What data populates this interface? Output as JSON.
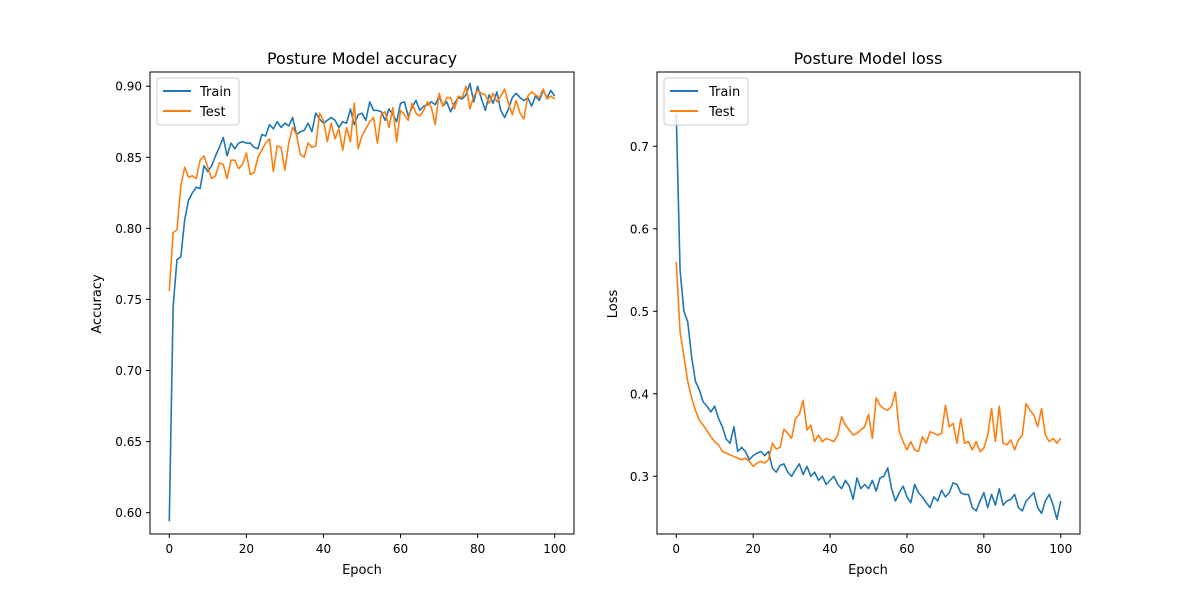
{
  "colors": {
    "train": "#1f77b4",
    "test": "#ff7f0e"
  },
  "chart_data": [
    {
      "type": "line",
      "title": "Posture Model accuracy",
      "xlabel": "Epoch",
      "ylabel": "Accuracy",
      "xlim": [
        -5,
        105
      ],
      "ylim": [
        0.585,
        0.91
      ],
      "xticks": [
        0,
        20,
        40,
        60,
        80,
        100
      ],
      "yticks": [
        0.6,
        0.65,
        0.7,
        0.75,
        0.8,
        0.85,
        0.9
      ],
      "ytick_labels": [
        "0.60",
        "0.65",
        "0.70",
        "0.75",
        "0.80",
        "0.85",
        "0.90"
      ],
      "legend": "upper-left",
      "series": [
        {
          "name": "Train",
          "color": "#1f77b4",
          "values": [
            0.594,
            0.745,
            0.778,
            0.78,
            0.806,
            0.82,
            0.825,
            0.829,
            0.828,
            0.844,
            0.84,
            0.844,
            0.851,
            0.857,
            0.864,
            0.851,
            0.86,
            0.856,
            0.86,
            0.861,
            0.86,
            0.86,
            0.857,
            0.856,
            0.866,
            0.865,
            0.873,
            0.87,
            0.875,
            0.871,
            0.874,
            0.872,
            0.878,
            0.866,
            0.868,
            0.869,
            0.874,
            0.868,
            0.881,
            0.877,
            0.874,
            0.876,
            0.878,
            0.876,
            0.871,
            0.875,
            0.874,
            0.884,
            0.873,
            0.88,
            0.881,
            0.876,
            0.889,
            0.883,
            0.883,
            0.882,
            0.876,
            0.884,
            0.88,
            0.875,
            0.888,
            0.889,
            0.879,
            0.885,
            0.89,
            0.883,
            0.886,
            0.887,
            0.889,
            0.887,
            0.893,
            0.886,
            0.889,
            0.882,
            0.888,
            0.892,
            0.891,
            0.894,
            0.902,
            0.889,
            0.9,
            0.891,
            0.883,
            0.894,
            0.888,
            0.896,
            0.883,
            0.878,
            0.884,
            0.892,
            0.895,
            0.892,
            0.89,
            0.892,
            0.886,
            0.893,
            0.89,
            0.897,
            0.892,
            0.897,
            0.893
          ]
        },
        {
          "name": "Test",
          "color": "#ff7f0e",
          "values": [
            0.756,
            0.797,
            0.799,
            0.83,
            0.843,
            0.836,
            0.837,
            0.835,
            0.848,
            0.851,
            0.843,
            0.835,
            0.837,
            0.846,
            0.845,
            0.835,
            0.848,
            0.848,
            0.842,
            0.845,
            0.853,
            0.838,
            0.839,
            0.85,
            0.855,
            0.86,
            0.863,
            0.84,
            0.858,
            0.857,
            0.841,
            0.86,
            0.871,
            0.866,
            0.852,
            0.85,
            0.86,
            0.857,
            0.858,
            0.881,
            0.876,
            0.861,
            0.874,
            0.863,
            0.87,
            0.855,
            0.871,
            0.861,
            0.888,
            0.856,
            0.865,
            0.87,
            0.875,
            0.878,
            0.86,
            0.88,
            0.882,
            0.871,
            0.885,
            0.861,
            0.883,
            0.88,
            0.876,
            0.888,
            0.881,
            0.879,
            0.883,
            0.889,
            0.885,
            0.873,
            0.895,
            0.886,
            0.892,
            0.892,
            0.884,
            0.893,
            0.892,
            0.9,
            0.884,
            0.893,
            0.897,
            0.895,
            0.894,
            0.888,
            0.895,
            0.889,
            0.893,
            0.898,
            0.888,
            0.88,
            0.89,
            0.881,
            0.877,
            0.893,
            0.896,
            0.894,
            0.892,
            0.898,
            0.891,
            0.893,
            0.891
          ]
        }
      ]
    },
    {
      "type": "line",
      "title": "Posture Model loss",
      "xlabel": "Epoch",
      "ylabel": "Loss",
      "xlim": [
        -5,
        105
      ],
      "ylim": [
        0.23,
        0.79
      ],
      "xticks": [
        0,
        20,
        40,
        60,
        80,
        100
      ],
      "yticks": [
        0.3,
        0.4,
        0.5,
        0.6,
        0.7
      ],
      "ytick_labels": [
        "0.3",
        "0.4",
        "0.5",
        "0.6",
        "0.7"
      ],
      "legend": "upper-left",
      "series": [
        {
          "name": "Train",
          "color": "#1f77b4",
          "values": [
            0.74,
            0.55,
            0.5,
            0.487,
            0.445,
            0.415,
            0.405,
            0.39,
            0.385,
            0.378,
            0.385,
            0.37,
            0.36,
            0.345,
            0.34,
            0.36,
            0.33,
            0.335,
            0.33,
            0.32,
            0.325,
            0.328,
            0.33,
            0.325,
            0.33,
            0.31,
            0.305,
            0.313,
            0.315,
            0.305,
            0.3,
            0.308,
            0.315,
            0.302,
            0.312,
            0.3,
            0.305,
            0.295,
            0.3,
            0.29,
            0.295,
            0.3,
            0.29,
            0.285,
            0.295,
            0.288,
            0.272,
            0.298,
            0.285,
            0.29,
            0.285,
            0.295,
            0.282,
            0.298,
            0.3,
            0.31,
            0.285,
            0.27,
            0.28,
            0.288,
            0.275,
            0.268,
            0.29,
            0.28,
            0.275,
            0.268,
            0.262,
            0.275,
            0.27,
            0.283,
            0.275,
            0.28,
            0.292,
            0.29,
            0.28,
            0.278,
            0.278,
            0.262,
            0.258,
            0.27,
            0.28,
            0.262,
            0.278,
            0.265,
            0.285,
            0.265,
            0.27,
            0.272,
            0.278,
            0.262,
            0.258,
            0.27,
            0.275,
            0.28,
            0.262,
            0.255,
            0.27,
            0.278,
            0.265,
            0.248,
            0.27
          ]
        },
        {
          "name": "Test",
          "color": "#ff7f0e",
          "values": [
            0.56,
            0.475,
            0.445,
            0.415,
            0.395,
            0.38,
            0.368,
            0.362,
            0.355,
            0.348,
            0.342,
            0.338,
            0.33,
            0.328,
            0.326,
            0.324,
            0.322,
            0.32,
            0.322,
            0.318,
            0.312,
            0.316,
            0.318,
            0.316,
            0.32,
            0.34,
            0.333,
            0.335,
            0.357,
            0.352,
            0.346,
            0.37,
            0.375,
            0.392,
            0.356,
            0.362,
            0.342,
            0.35,
            0.342,
            0.346,
            0.344,
            0.342,
            0.35,
            0.372,
            0.362,
            0.356,
            0.35,
            0.352,
            0.356,
            0.36,
            0.375,
            0.346,
            0.395,
            0.386,
            0.382,
            0.38,
            0.385,
            0.402,
            0.354,
            0.342,
            0.332,
            0.342,
            0.332,
            0.33,
            0.348,
            0.34,
            0.354,
            0.352,
            0.35,
            0.352,
            0.386,
            0.36,
            0.364,
            0.34,
            0.37,
            0.34,
            0.342,
            0.332,
            0.342,
            0.33,
            0.334,
            0.35,
            0.382,
            0.342,
            0.385,
            0.34,
            0.338,
            0.344,
            0.332,
            0.344,
            0.35,
            0.388,
            0.38,
            0.374,
            0.36,
            0.382,
            0.35,
            0.342,
            0.346,
            0.34,
            0.346
          ]
        }
      ]
    }
  ]
}
